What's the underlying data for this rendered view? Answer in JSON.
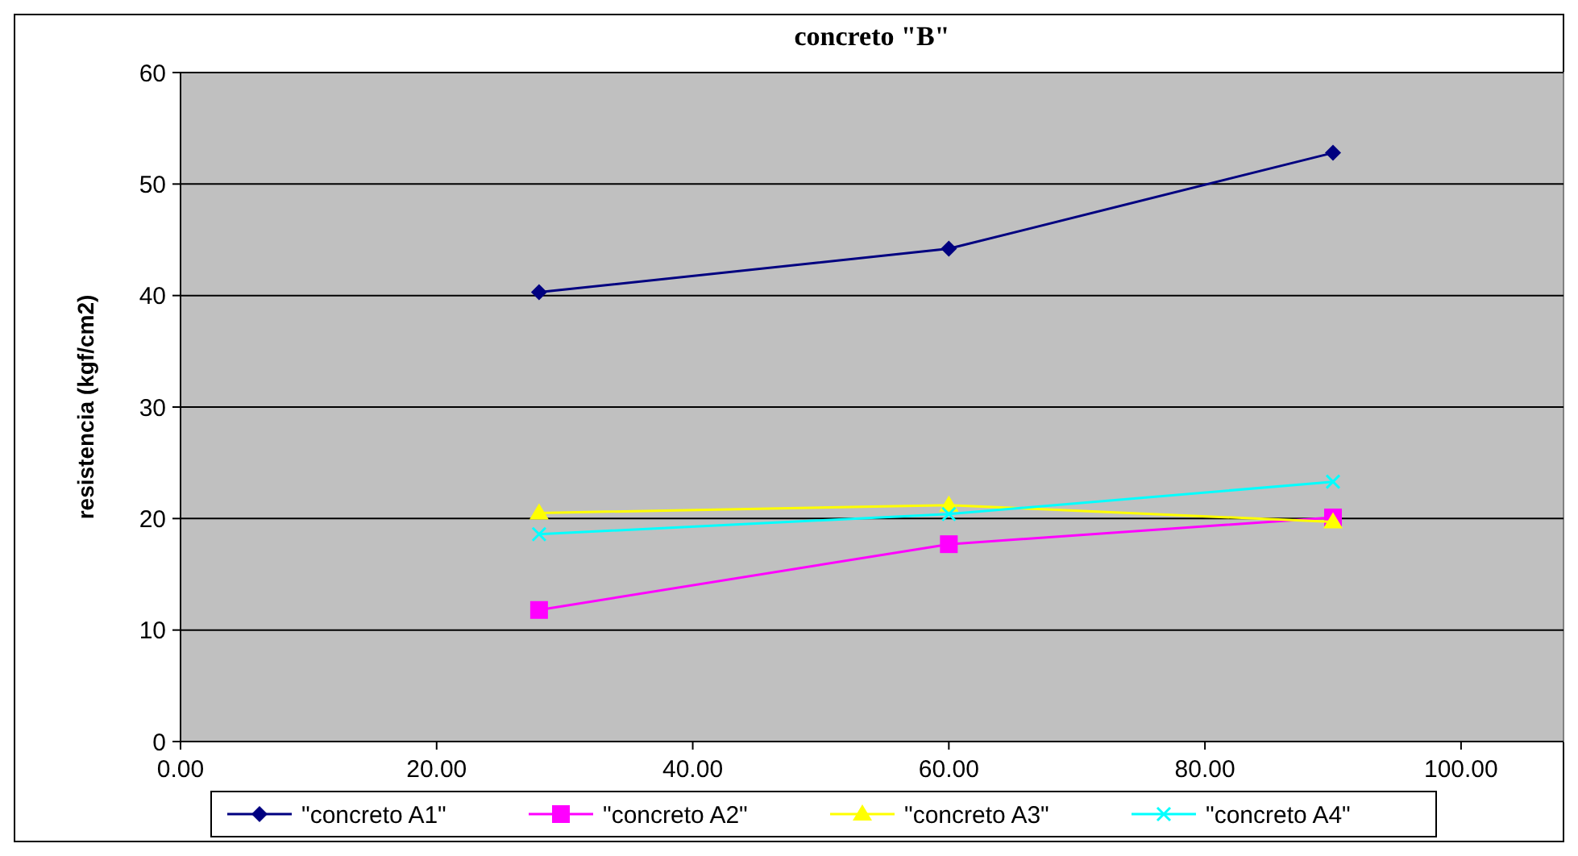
{
  "chart_data": {
    "type": "line",
    "title": "concreto \"B\"",
    "ylabel": "resistencia (kgf/cm2)",
    "x": [
      28,
      60,
      90
    ],
    "series": [
      {
        "name": "\"concreto A1\"",
        "color": "#000080",
        "marker": "diamond",
        "values": [
          40.3,
          44.2,
          52.8
        ]
      },
      {
        "name": "\"concreto A2\"",
        "color": "#ff00ff",
        "marker": "square",
        "values": [
          11.8,
          17.7,
          20.1
        ]
      },
      {
        "name": "\"concreto A3\"",
        "color": "#ffff00",
        "marker": "triangle",
        "values": [
          20.5,
          21.2,
          19.7
        ]
      },
      {
        "name": "\"concreto A4\"",
        "color": "#00ffff",
        "marker": "cross",
        "values": [
          18.6,
          20.4,
          23.3
        ]
      }
    ],
    "xlim": [
      0,
      108
    ],
    "xticks": [
      {
        "value": 0,
        "label": "0.00"
      },
      {
        "value": 20,
        "label": "20.00"
      },
      {
        "value": 40,
        "label": "40.00"
      },
      {
        "value": 60,
        "label": "60.00"
      },
      {
        "value": 80,
        "label": "80.00"
      },
      {
        "value": 100,
        "label": "100.00"
      }
    ],
    "ylim": [
      0,
      60
    ],
    "yticks": [
      0,
      10,
      20,
      30,
      40,
      50,
      60
    ],
    "grid": "y",
    "legend": "bottom",
    "line_style": "solid"
  }
}
